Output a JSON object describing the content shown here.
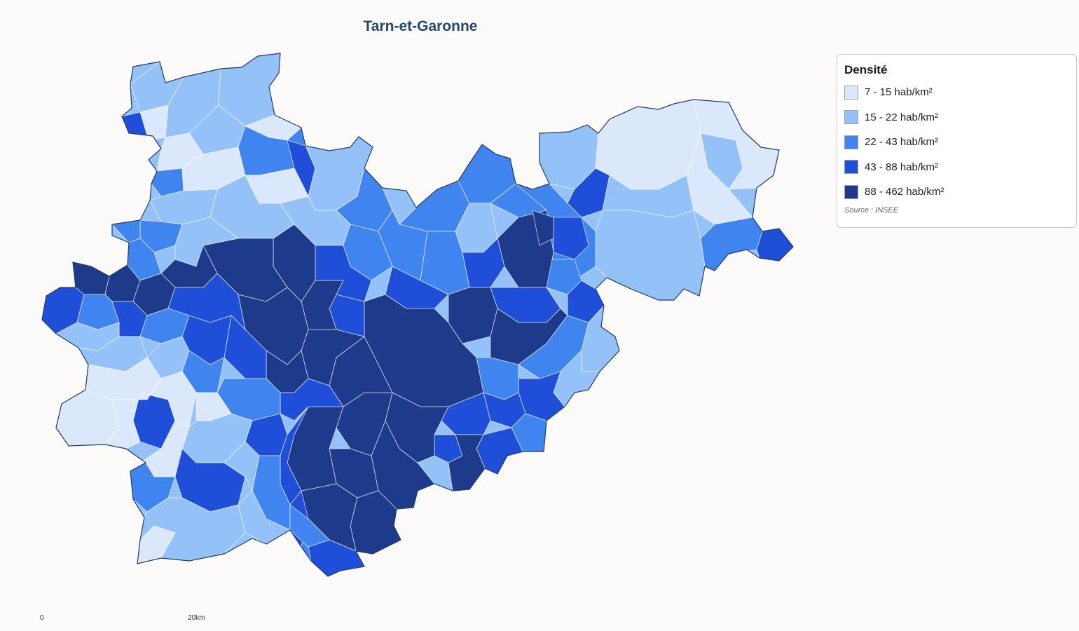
{
  "title": "Tarn-et-Garonne",
  "legend": {
    "title": "Densité",
    "classes": [
      {
        "label": "7 - 15 hab/km²",
        "color": "#dbe8fb"
      },
      {
        "label": "15 - 22 hab/km²",
        "color": "#94c2f8"
      },
      {
        "label": "22 - 43 hab/km²",
        "color": "#3f84ef"
      },
      {
        "label": "43 - 88 hab/km²",
        "color": "#1f4ed8"
      },
      {
        "label": "88 - 462 hab/km²",
        "color": "#1e3a8a"
      }
    ],
    "source": "Source : INSEE"
  },
  "scale": {
    "start_label": "0",
    "end_label": "20km"
  }
}
